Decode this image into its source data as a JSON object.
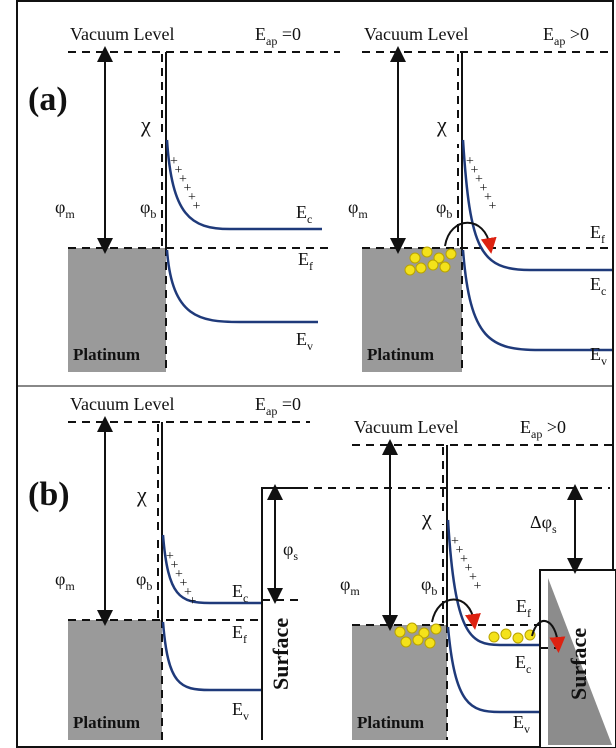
{
  "panel_a": {
    "label": "(a)",
    "left": {
      "vacuum": "Vacuum Level",
      "condition": {
        "base": "E",
        "sub": "ap",
        "suffix": " =0"
      },
      "chi": "χ",
      "phi_m": {
        "base": "φ",
        "sub": "m"
      },
      "phi_b": {
        "base": "φ",
        "sub": "b"
      },
      "metal": "Platinum",
      "ec": {
        "base": "E",
        "sub": "c"
      },
      "ef": {
        "base": "E",
        "sub": "f"
      },
      "ev": {
        "base": "E",
        "sub": "v"
      }
    },
    "right": {
      "vacuum": "Vacuum Level",
      "condition": {
        "base": "E",
        "sub": "ap",
        "suffix": " >0"
      },
      "chi": "χ",
      "phi_m": {
        "base": "φ",
        "sub": "m"
      },
      "phi_b": {
        "base": "φ",
        "sub": "b"
      },
      "metal": "Platinum",
      "ec": {
        "base": "E",
        "sub": "c"
      },
      "ef": {
        "base": "E",
        "sub": "f"
      },
      "ev": {
        "base": "E",
        "sub": "v"
      }
    }
  },
  "panel_b": {
    "label": "(b)",
    "left": {
      "vacuum": "Vacuum Level",
      "condition": {
        "base": "E",
        "sub": "ap",
        "suffix": " =0"
      },
      "chi": "χ",
      "phi_m": {
        "base": "φ",
        "sub": "m"
      },
      "phi_b": {
        "base": "φ",
        "sub": "b"
      },
      "metal": "Platinum",
      "ec": {
        "base": "E",
        "sub": "c"
      },
      "ef": {
        "base": "E",
        "sub": "f"
      },
      "ev": {
        "base": "E",
        "sub": "v"
      },
      "surface": "Surface",
      "phi_s": {
        "base": "φ",
        "sub": "s"
      }
    },
    "right": {
      "vacuum": "Vacuum Level",
      "condition": {
        "base": "E",
        "sub": "ap",
        "suffix": " >0"
      },
      "chi": "χ",
      "phi_m": {
        "base": "φ",
        "sub": "m"
      },
      "phi_b": {
        "base": "φ",
        "sub": "b"
      },
      "metal": "Platinum",
      "ec": {
        "base": "E",
        "sub": "c"
      },
      "ef": {
        "base": "E",
        "sub": "f"
      },
      "ev": {
        "base": "E",
        "sub": "v"
      },
      "surface": "Surface",
      "delta_phi_s": {
        "base": "Δφ",
        "sub": "s"
      }
    }
  }
}
